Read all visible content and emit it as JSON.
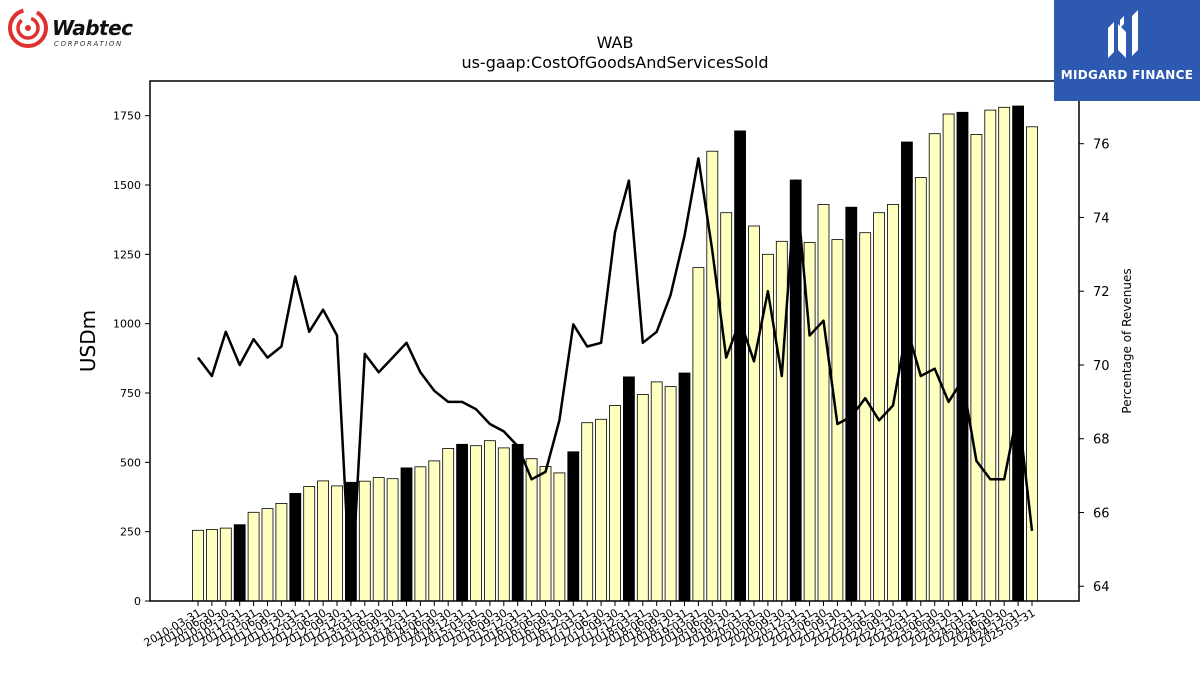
{
  "logos": {
    "left": {
      "name": "Wabtec",
      "subtext": "CORPORATION"
    },
    "right": {
      "name": "MIDGARD FINANCE"
    }
  },
  "chart_data": {
    "type": "bar+line",
    "title": "WAB",
    "subtitle": "us-gaap:CostOfGoodsAndServicesSold",
    "ylabel": "USDm",
    "y2label": "Percentage of Revenues",
    "ylim": [
      0,
      1875
    ],
    "y2lim": [
      63.6,
      77.7
    ],
    "yticks": [
      0,
      250,
      500,
      750,
      1000,
      1250,
      1500,
      1750
    ],
    "y2ticks": [
      64,
      66,
      68,
      70,
      72,
      74,
      76
    ],
    "colors": {
      "quarter_bar": "#ffffc0",
      "annual_bar": "#000000",
      "line": "#000000"
    },
    "x": [
      "2010-03-31",
      "2010-06-30",
      "2010-09-30",
      "2010-12-31",
      "2011-03-31",
      "2011-06-30",
      "2011-09-30",
      "2011-12-31",
      "2012-03-31",
      "2012-06-30",
      "2012-09-30",
      "2012-12-31",
      "2013-03-31",
      "2013-06-30",
      "2013-09-30",
      "2013-12-31",
      "2014-03-31",
      "2014-06-30",
      "2014-09-30",
      "2014-12-31",
      "2015-03-31",
      "2015-06-30",
      "2015-09-30",
      "2015-12-31",
      "2016-03-31",
      "2016-06-30",
      "2016-09-30",
      "2016-12-31",
      "2017-03-31",
      "2017-06-30",
      "2017-09-30",
      "2017-12-31",
      "2018-03-31",
      "2018-06-30",
      "2018-09-30",
      "2018-12-31",
      "2019-03-31",
      "2019-06-30",
      "2019-09-30",
      "2019-12-31",
      "2020-03-31",
      "2020-06-30",
      "2020-09-30",
      "2020-12-31",
      "2021-03-31",
      "2021-06-30",
      "2021-09-30",
      "2021-12-31",
      "2022-03-31",
      "2022-06-30",
      "2022-09-30",
      "2022-12-31",
      "2023-03-31",
      "2023-06-30",
      "2023-09-30",
      "2023-12-31",
      "2024-03-31",
      "2024-06-30",
      "2024-09-30",
      "2024-12-31",
      "2025-03-31"
    ],
    "xticklabels": [
      "2010-03-31",
      "2010-06-30",
      "2010-09-30",
      "2010-12-31",
      "2011-03-31",
      "2011-06-30",
      "2011-09-30",
      "2011-12-31",
      "2012-03-31",
      "2012-06-30",
      "2012-09-30",
      "2012-12-31",
      "2013-03-31",
      "2013-06-30",
      "2013-09-30",
      "2013-12-31",
      "2014-03-31",
      "2014-06-30",
      "2014-09-30",
      "2014-12-31",
      "2015-03-31",
      "2015-06-30",
      "2015-09-30",
      "2015-12-31",
      "2016-03-31",
      "2016-06-30",
      "2016-09-30",
      "2016-12-31",
      "2017-03-31",
      "2017-06-30",
      "2017-09-30",
      "2017-12-31",
      "2018-03-31",
      "2018-06-30",
      "2018-09-30",
      "2018-12-31",
      "2019-03-31",
      "2019-06-30",
      "2019-09-30",
      "2019-12-31",
      "2020-03-31",
      "2020-06-30",
      "2020-09-30",
      "2020-12-31",
      "2021-03-31",
      "2021-06-30",
      "2021-09-30",
      "2021-12-31",
      "2022-03-31",
      "2022-06-30",
      "2022-09-30",
      "2022-12-31",
      "2023-03-31",
      "2023-06-30",
      "2023-09-30",
      "2023-12-31",
      "2024-03-31",
      "2024-06-30",
      "2024-09-30",
      "2024-12-31",
      "2025-03-31"
    ],
    "bars": [
      255,
      258,
      263,
      275,
      320,
      333,
      352,
      388,
      413,
      433,
      415,
      428,
      432,
      445,
      441,
      480,
      484,
      505,
      550,
      565,
      560,
      578,
      552,
      565,
      513,
      485,
      462,
      538,
      643,
      655,
      705,
      808,
      745,
      790,
      773,
      822,
      1202,
      1622,
      1400,
      1695,
      1352,
      1250,
      1297,
      1518,
      1293,
      1430,
      1303,
      1420,
      1328,
      1400,
      1430,
      1655,
      1527,
      1685,
      1756,
      1762,
      1682,
      1770,
      1780,
      1785,
      1710
    ],
    "bar_kind": [
      "q",
      "q",
      "q",
      "a",
      "q",
      "q",
      "q",
      "a",
      "q",
      "q",
      "q",
      "a",
      "q",
      "q",
      "q",
      "a",
      "q",
      "q",
      "q",
      "a",
      "q",
      "q",
      "q",
      "a",
      "q",
      "q",
      "q",
      "a",
      "q",
      "q",
      "q",
      "a",
      "q",
      "q",
      "q",
      "a",
      "q",
      "q",
      "q",
      "a",
      "q",
      "q",
      "q",
      "a",
      "q",
      "q",
      "q",
      "a",
      "q",
      "q",
      "q",
      "a",
      "q",
      "q",
      "q",
      "a",
      "q",
      "q",
      "q",
      "a",
      "q"
    ],
    "line": [
      70.2,
      69.7,
      70.9,
      70.0,
      70.7,
      70.2,
      70.5,
      72.4,
      70.9,
      71.5,
      70.8,
      null,
      70.3,
      69.8,
      70.2,
      70.6,
      69.8,
      69.3,
      69.0,
      69.0,
      68.8,
      68.4,
      68.2,
      67.8,
      66.9,
      67.1,
      68.5,
      71.1,
      70.5,
      70.6,
      73.6,
      75.0,
      70.6,
      70.9,
      71.9,
      73.5,
      75.6,
      73.1,
      70.2,
      71.2,
      70.1,
      72.0,
      69.7,
      75.0,
      70.8,
      71.2,
      68.4,
      68.6,
      69.1,
      68.5,
      68.9,
      71.0,
      69.7,
      69.9,
      69.0,
      69.6,
      67.4,
      66.9,
      66.9,
      68.8,
      65.5
    ],
    "line_drops": [
      {
        "index": 11,
        "to": 63.6
      },
      {
        "index": 12,
        "from": 63.6
      }
    ]
  }
}
